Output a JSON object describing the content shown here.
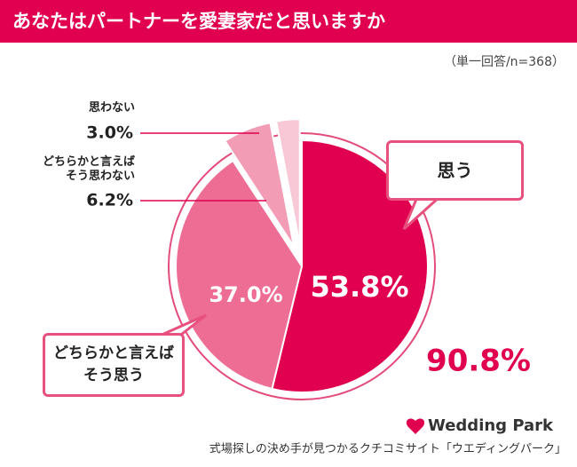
{
  "chart_data": {
    "type": "pie",
    "title": "あなたはパートナーを愛妻家だと思いますか",
    "subtitle": "（単一回答/n=368）",
    "categories": [
      "思う",
      "どちらかと言えば\nそう思う",
      "どちらかと言えば\nそう思わない",
      "思わない"
    ],
    "values": [
      53.8,
      37.0,
      6.2,
      3.0
    ],
    "value_labels": [
      "53.8%",
      "37.0%",
      "6.2%",
      "3.0%"
    ],
    "colors": [
      "#e0004f",
      "#ee6d95",
      "#f29cb5",
      "#f8c8d6"
    ],
    "total_label": "90.8%",
    "brand": "Wedding Park",
    "footer": "式場探しの決め手が見つかるクチコミサイト「ウエディングパーク」"
  }
}
